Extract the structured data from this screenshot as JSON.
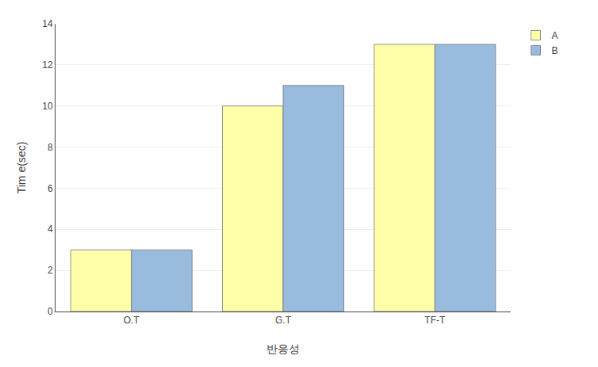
{
  "chart_data": {
    "type": "bar",
    "categories": [
      "O.T",
      "G.T",
      "TF-T"
    ],
    "series": [
      {
        "name": "A",
        "color": "#FFFFAA",
        "values": [
          3,
          10,
          13
        ]
      },
      {
        "name": "B",
        "color": "#99BBDD",
        "values": [
          3,
          11,
          13
        ]
      }
    ],
    "xlabel": "반응성",
    "ylabel": "Tim e(sec)",
    "ylim": [
      0,
      14
    ],
    "yticks": [
      0,
      2,
      4,
      6,
      8,
      10,
      12,
      14
    ],
    "grid": true,
    "legend": "right"
  }
}
